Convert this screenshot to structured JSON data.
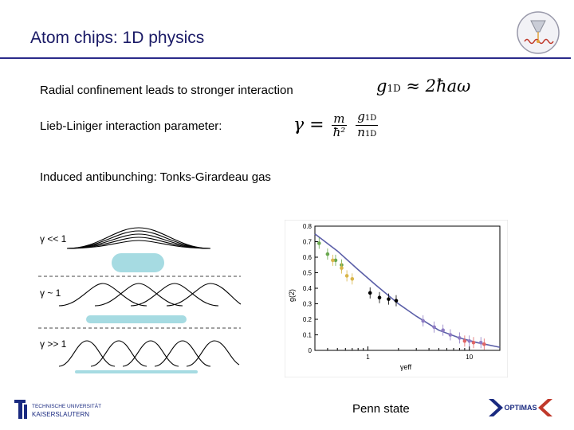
{
  "slide": {
    "title": "Atom chips: 1D physics",
    "lines": [
      "Radial confinement leads to stronger interaction",
      "Lieb-Liniger interaction parameter:",
      "Induced antibunching: Tonks-Girardeau gas"
    ],
    "formula1": {
      "lhs": "g",
      "lhs_sub": "1D",
      "rhs": "≈ 2ħaω"
    },
    "formula2": {
      "lhs": "γ =",
      "frac1_num": "m",
      "frac1_den": "ħ²",
      "frac2_num": "g",
      "frac2_num_sub": "1D",
      "frac2_den": "n",
      "frac2_den_sub": "1D"
    },
    "left_panel": {
      "labels": [
        "γ << 1",
        "γ ~ 1",
        "γ >> 1"
      ],
      "cloud_color": "#a6dbe2"
    },
    "footer": {
      "left_logo_text": [
        "TECHNISCHE UNIVERSITÄT",
        "KAISERSLAUTERN"
      ],
      "center": "Penn state",
      "right_logo_text": "OPTIMAS"
    },
    "accent": "#2b2b8a"
  },
  "chart_data": {
    "type": "scatter",
    "xscale": "log",
    "xlim": [
      0.3,
      20
    ],
    "ylim": [
      0,
      0.8
    ],
    "yticks": [
      "0",
      "0.1",
      "0.2",
      "0.3",
      "0.4",
      "0.5",
      "0.6",
      "0.7",
      "0.8"
    ],
    "xticks": [
      "1",
      "10"
    ],
    "xlabel": "γeff",
    "ylabel": "g(2)",
    "theory_curve": {
      "x": [
        0.3,
        0.5,
        0.8,
        1.2,
        2.0,
        3.0,
        5.0,
        8.0,
        12.0,
        20.0
      ],
      "y": [
        0.75,
        0.64,
        0.52,
        0.42,
        0.3,
        0.22,
        0.13,
        0.08,
        0.05,
        0.02
      ]
    },
    "series": [
      {
        "color": "#6aa84f",
        "x": [
          0.33,
          0.4,
          0.48,
          0.55
        ],
        "y": [
          0.69,
          0.62,
          0.58,
          0.55
        ]
      },
      {
        "color": "#d9b64a",
        "x": [
          0.45,
          0.55,
          0.62,
          0.7
        ],
        "y": [
          0.58,
          0.53,
          0.48,
          0.46
        ]
      },
      {
        "color": "#000000",
        "x": [
          1.05,
          1.3,
          1.6,
          1.9
        ],
        "y": [
          0.37,
          0.34,
          0.33,
          0.32
        ]
      },
      {
        "color": "#8e7cc3",
        "x": [
          3.5,
          4.5,
          5.5,
          6.5,
          8.0,
          10.0,
          13.0
        ],
        "y": [
          0.19,
          0.15,
          0.13,
          0.1,
          0.08,
          0.06,
          0.05
        ]
      },
      {
        "color": "#e06666",
        "x": [
          9.0,
          11.0,
          14.0
        ],
        "y": [
          0.06,
          0.05,
          0.04
        ]
      }
    ]
  }
}
